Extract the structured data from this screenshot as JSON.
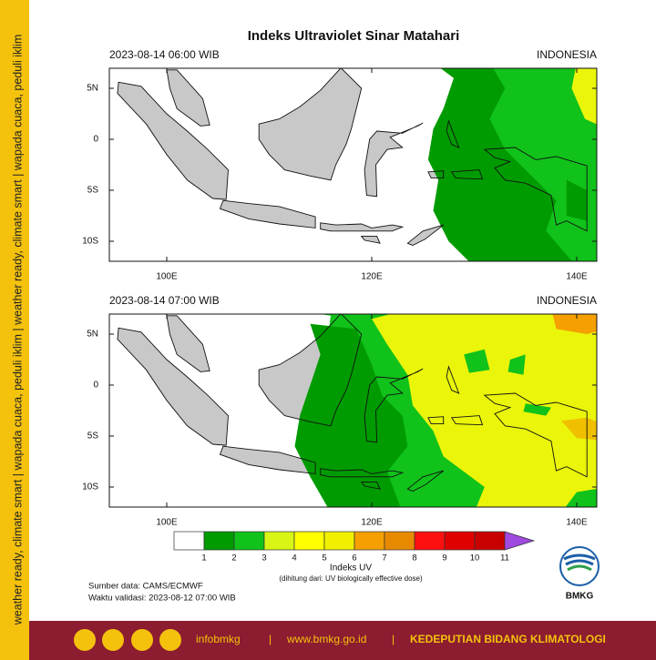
{
  "sidebar": {
    "text": "weather ready, climate smart | wapada cuaca, peduli iklim | weather ready, climate smart | wapada cuaca, peduli iklim"
  },
  "title": "Indeks Ultraviolet Sinar Matahari",
  "panels": [
    {
      "time": "2023-08-14  06:00 WIB",
      "region": "INDONESIA"
    },
    {
      "time": "2023-08-14  07:00 WIB",
      "region": "INDONESIA"
    }
  ],
  "axes": {
    "lat_labels": [
      "5N",
      "0",
      "5S",
      "10S"
    ],
    "lon_labels": [
      "100E",
      "120E",
      "140E"
    ]
  },
  "colorbar": {
    "labels": [
      "1",
      "2",
      "3",
      "4",
      "5",
      "6",
      "7",
      "8",
      "9",
      "10",
      "11"
    ],
    "title": "Indeks UV",
    "note": "(dihitung dari: UV biologically effective dose)"
  },
  "source": "Sumber data: CAMS/ECMWF",
  "validity": "Waktu validasi: 2023-08-12 07:00 WIB",
  "logo": "BMKG",
  "footer": {
    "social": "infobmkg",
    "separator": "|",
    "website": "www.bmkg.go.id",
    "division": "KEDEPUTIAN BIDANG KLIMATOLOGI"
  }
}
